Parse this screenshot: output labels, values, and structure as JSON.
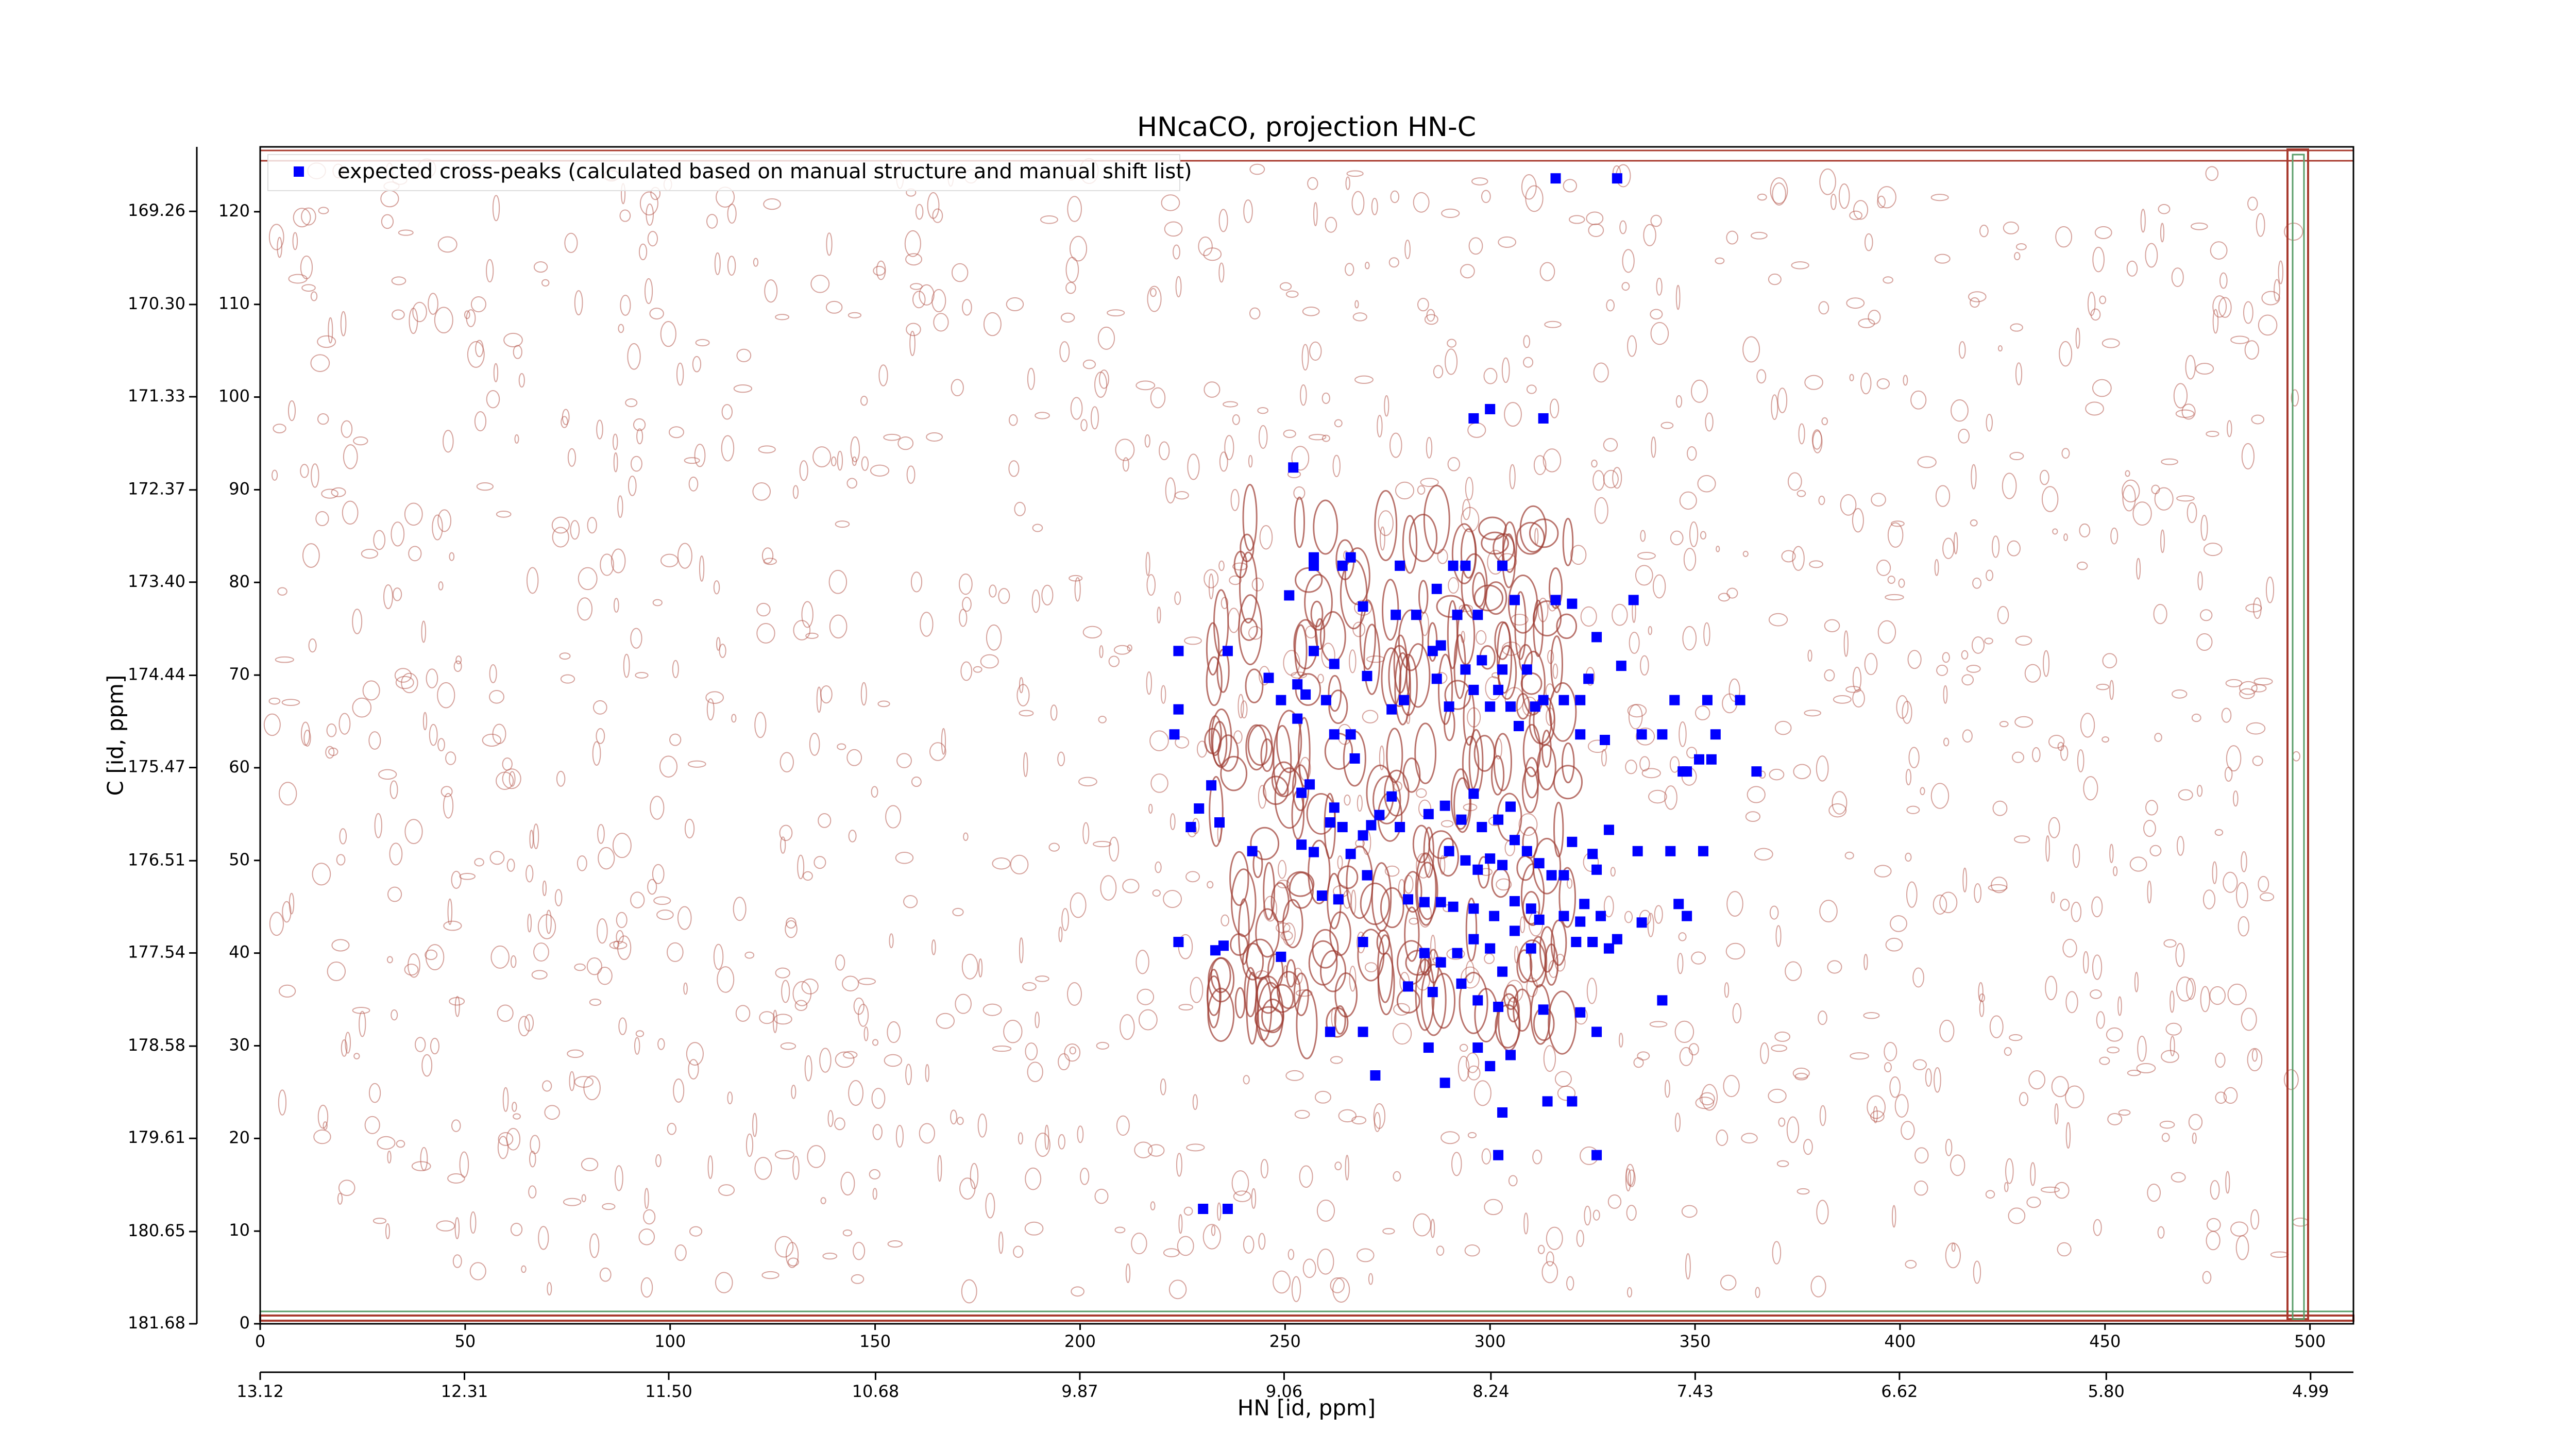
{
  "chart_data": {
    "type": "scatter",
    "title": "HNcaCO, projection HN-C",
    "x_label": "HN [id, ppm]",
    "y_label": "C [id, ppm]",
    "legend": "upper left",
    "series": [
      {
        "name": "expected cross-peaks (calculated based on manual structure and manual shift list)",
        "color": "#0000ff",
        "marker": "square",
        "x": [
          316,
          331,
          252,
          296,
          300,
          313,
          257,
          257,
          264,
          266,
          278,
          291,
          294,
          287,
          303,
          251,
          306,
          316,
          320,
          326,
          335,
          269,
          282,
          277,
          292,
          297,
          288,
          236,
          246,
          253,
          255,
          257,
          262,
          270,
          224,
          224,
          249,
          253,
          260,
          262,
          266,
          276,
          279,
          223,
          286,
          287,
          290,
          294,
          296,
          298,
          300,
          302,
          303,
          305,
          307,
          309,
          311,
          313,
          318,
          322,
          324,
          328,
          332,
          322,
          337,
          342,
          345,
          353,
          361,
          355,
          347,
          348,
          365,
          351,
          354,
          267,
          232,
          254,
          256,
          276,
          264,
          261,
          262,
          229,
          234,
          227,
          242,
          254,
          257,
          266,
          269,
          271,
          273,
          278,
          285,
          289,
          293,
          296,
          298,
          302,
          305,
          306,
          290,
          294,
          297,
          300,
          303,
          309,
          312,
          315,
          318,
          320,
          325,
          329,
          326,
          336,
          344,
          352,
          259,
          263,
          270,
          280,
          284,
          288,
          291,
          296,
          301,
          306,
          310,
          312,
          318,
          323,
          327,
          346,
          348,
          337,
          224,
          233,
          235,
          249,
          269,
          284,
          288,
          292,
          296,
          300,
          303,
          306,
          310,
          321,
          325,
          329,
          331,
          322,
          280,
          286,
          293,
          297,
          302,
          322,
          313,
          326,
          342,
          261,
          269,
          272,
          285,
          297,
          305,
          300,
          303,
          314,
          320,
          326,
          302,
          289,
          230,
          236
        ],
        "y": [
          123.6,
          123.6,
          92.4,
          97.7,
          98.7,
          97.7,
          82.7,
          81.8,
          81.8,
          82.7,
          81.8,
          81.8,
          81.8,
          79.3,
          81.8,
          78.6,
          78.1,
          78.1,
          77.7,
          74.1,
          78.1,
          77.4,
          76.5,
          76.5,
          76.5,
          76.5,
          73.2,
          72.6,
          69.7,
          69.0,
          67.9,
          72.6,
          71.2,
          69.9,
          72.6,
          66.3,
          67.3,
          65.3,
          67.3,
          63.6,
          63.6,
          66.3,
          67.3,
          63.6,
          72.6,
          69.6,
          66.6,
          70.6,
          68.4,
          71.6,
          66.6,
          68.4,
          70.6,
          66.6,
          64.5,
          70.6,
          66.6,
          67.3,
          67.3,
          67.3,
          69.6,
          63.0,
          71.0,
          63.6,
          63.6,
          63.6,
          67.3,
          67.3,
          67.3,
          63.6,
          59.6,
          59.6,
          59.6,
          60.9,
          60.9,
          61.0,
          58.1,
          57.3,
          58.2,
          56.9,
          53.6,
          54.1,
          55.7,
          55.6,
          54.1,
          53.6,
          51.0,
          51.7,
          50.9,
          50.7,
          52.7,
          53.8,
          54.9,
          53.6,
          55.0,
          55.9,
          54.4,
          57.2,
          53.6,
          54.4,
          55.8,
          52.2,
          51.0,
          50.0,
          49.0,
          50.2,
          49.5,
          51.0,
          49.7,
          48.4,
          48.4,
          52.0,
          50.7,
          53.3,
          49.0,
          51.0,
          51.0,
          51.0,
          46.2,
          45.8,
          48.4,
          45.8,
          45.5,
          45.5,
          45.0,
          44.8,
          44.0,
          45.6,
          44.8,
          43.6,
          44.0,
          45.3,
          44.0,
          45.3,
          44.0,
          43.3,
          41.2,
          40.3,
          40.8,
          39.6,
          41.2,
          40.0,
          39.0,
          40.0,
          41.5,
          40.5,
          38.0,
          42.4,
          40.5,
          41.2,
          41.2,
          40.5,
          41.5,
          43.4,
          36.4,
          35.8,
          36.7,
          34.9,
          34.2,
          33.6,
          33.9,
          31.5,
          34.9,
          31.5,
          31.5,
          26.8,
          29.8,
          29.8,
          29.0,
          27.8,
          22.8,
          24.0,
          24.0,
          18.2,
          18.2,
          26.0,
          12.4,
          12.4
        ]
      }
    ],
    "xlim": [
      0,
      510.6
    ],
    "xticks": [
      0,
      50,
      100,
      150,
      200,
      250,
      300,
      350,
      400,
      450,
      500
    ],
    "ylim": [
      0,
      127
    ],
    "yticks": [
      0,
      10,
      20,
      30,
      40,
      50,
      60,
      70,
      80,
      90,
      100,
      110,
      120
    ],
    "x2lim": [
      13.12,
      4.82
    ],
    "x2ticks": [
      13.12,
      12.31,
      {
        "value": 11.5,
        "label": "11.50"
      },
      10.68,
      9.87,
      9.06,
      8.24,
      7.43,
      6.62,
      {
        "value": 5.8,
        "label": "5.80"
      },
      4.99
    ],
    "y2lim": [
      181.68,
      168.54
    ],
    "y2ticks": [
      169.26,
      {
        "value": 170.3,
        "label": "170.30"
      },
      171.33,
      172.37,
      {
        "value": 173.4,
        "label": "173.40"
      },
      174.44,
      175.47,
      176.51,
      177.54,
      178.58,
      179.61,
      180.65,
      181.68
    ]
  }
}
